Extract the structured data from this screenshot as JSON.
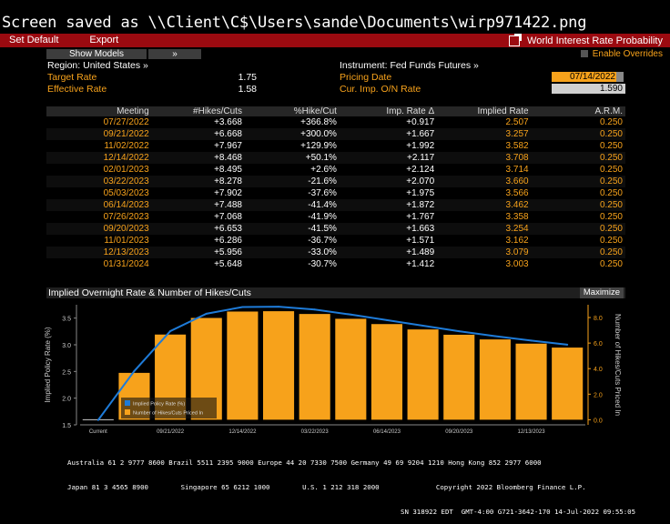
{
  "banner": "Screen saved as \\\\Client\\C$\\Users\\sande\\Documents\\wirp971422.png",
  "toolbar": {
    "set_default": "Set Default",
    "export": "Export",
    "title": "World Interest Rate Probability"
  },
  "bar2": {
    "show_models": "Show Models",
    "chevron": "»",
    "enable_overrides": "Enable Overrides"
  },
  "info": {
    "region": "Region: United States »",
    "target_rate_label": "Target Rate",
    "target_rate": "1.75",
    "effective_rate_label": "Effective Rate",
    "effective_rate": "1.58",
    "instrument": "Instrument: Fed Funds Futures »",
    "pricing_date_label": "Pricing Date",
    "pricing_date": "07/14/2022",
    "cur_imp_label": "Cur. Imp. O/N Rate",
    "cur_imp": "1.590"
  },
  "table": {
    "headers": [
      "Meeting",
      "#Hikes/Cuts",
      "%Hike/Cut",
      "Imp. Rate Δ",
      "Implied Rate",
      "A.R.M."
    ],
    "rows": [
      [
        "07/27/2022",
        "+3.668",
        "+366.8%",
        "+0.917",
        "2.507",
        "0.250"
      ],
      [
        "09/21/2022",
        "+6.668",
        "+300.0%",
        "+1.667",
        "3.257",
        "0.250"
      ],
      [
        "11/02/2022",
        "+7.967",
        "+129.9%",
        "+1.992",
        "3.582",
        "0.250"
      ],
      [
        "12/14/2022",
        "+8.468",
        "+50.1%",
        "+2.117",
        "3.708",
        "0.250"
      ],
      [
        "02/01/2023",
        "+8.495",
        "+2.6%",
        "+2.124",
        "3.714",
        "0.250"
      ],
      [
        "03/22/2023",
        "+8.278",
        "-21.6%",
        "+2.070",
        "3.660",
        "0.250"
      ],
      [
        "05/03/2023",
        "+7.902",
        "-37.6%",
        "+1.975",
        "3.566",
        "0.250"
      ],
      [
        "06/14/2023",
        "+7.488",
        "-41.4%",
        "+1.872",
        "3.462",
        "0.250"
      ],
      [
        "07/26/2023",
        "+7.068",
        "-41.9%",
        "+1.767",
        "3.358",
        "0.250"
      ],
      [
        "09/20/2023",
        "+6.653",
        "-41.5%",
        "+1.663",
        "3.254",
        "0.250"
      ],
      [
        "11/01/2023",
        "+6.286",
        "-36.7%",
        "+1.571",
        "3.162",
        "0.250"
      ],
      [
        "12/13/2023",
        "+5.956",
        "-33.0%",
        "+1.489",
        "3.079",
        "0.250"
      ],
      [
        "01/31/2024",
        "+5.648",
        "-30.7%",
        "+1.412",
        "3.003",
        "0.250"
      ]
    ]
  },
  "chart_header": {
    "title": "Implied Overnight Rate & Number of Hikes/Cuts",
    "maximize": "Maximize"
  },
  "chart_data": {
    "type": "bar",
    "categories": [
      "Current",
      "07/27/2022",
      "09/21/2022",
      "11/02/2022",
      "12/14/2022",
      "02/01/2023",
      "03/22/2023",
      "05/03/2023",
      "06/14/2023",
      "07/26/2023",
      "09/20/2023",
      "11/01/2023",
      "12/13/2023",
      "01/31/2024"
    ],
    "x_tick_labels": [
      "Current",
      "09/21/2022",
      "12/14/2022",
      "03/22/2023",
      "06/14/2023",
      "09/20/2023",
      "12/13/2023"
    ],
    "x_tick_indices": [
      0,
      2,
      4,
      6,
      8,
      10,
      12
    ],
    "series": [
      {
        "name": "Implied Policy Rate (%)",
        "type": "line",
        "axis": "left",
        "color": "#1e7bd8",
        "values": [
          1.59,
          2.507,
          3.257,
          3.582,
          3.708,
          3.714,
          3.66,
          3.566,
          3.462,
          3.358,
          3.254,
          3.162,
          3.079,
          3.003
        ]
      },
      {
        "name": "Number of Hikes/Cuts Priced In",
        "type": "bar",
        "axis": "right",
        "color": "#f7a21b",
        "values": [
          0,
          3.668,
          6.668,
          7.967,
          8.468,
          8.495,
          8.278,
          7.902,
          7.488,
          7.068,
          6.653,
          6.286,
          5.956,
          5.648
        ]
      }
    ],
    "ylabel": "Implied Policy Rate (%)",
    "y2label": "Number of Hikes/Cuts Priced In",
    "ylim": [
      1.5,
      3.75
    ],
    "y_ticks": [
      1.5,
      2.0,
      2.5,
      3.0,
      3.5
    ],
    "y_tick_labels": [
      "1.5",
      "2.0",
      "2.5",
      "3.0",
      "3.5"
    ],
    "y2lim": [
      -0.4,
      9.0
    ],
    "y2_ticks": [
      0,
      2,
      4,
      6,
      8
    ],
    "y2_tick_labels": [
      "0.0",
      "2.0",
      "4.0",
      "6.0",
      "8.0"
    ],
    "legend_position": "bottom-left"
  },
  "footer": {
    "line1": "Australia 61 2 9777 8600 Brazil 5511 2395 9000 Europe 44 20 7330 7500 Germany 49 69 9204 1210 Hong Kong 852 2977 6000",
    "line2": "Japan 81 3 4565 8900        Singapore 65 6212 1000        U.S. 1 212 318 2000              Copyright 2022 Bloomberg Finance L.P.",
    "line3": "SN 318922 EDT  GMT-4:00 G721-3642-170 14-Jul-2022 09:55:05"
  },
  "colors": {
    "accent": "#f7a21b",
    "toolbar": "#9b0a10",
    "line": "#1e7bd8"
  }
}
